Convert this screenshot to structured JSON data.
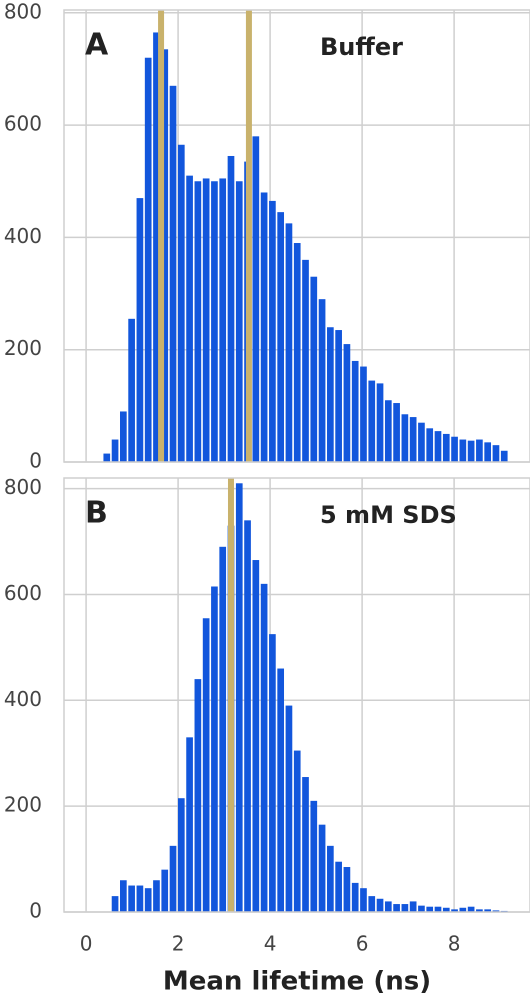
{
  "chart_data": [
    {
      "type": "histogram",
      "panel_label": "A",
      "annotation": "Buffer",
      "bins": [
        0.36,
        0.54,
        0.72,
        0.9,
        1.08,
        1.26,
        1.44,
        1.62,
        1.8,
        1.98,
        2.16,
        2.34,
        2.52,
        2.7,
        2.88,
        3.06,
        3.24,
        3.42,
        3.6,
        3.78,
        3.96,
        4.14,
        4.32,
        4.5,
        4.68,
        4.86,
        5.04,
        5.22,
        5.4,
        5.58,
        5.76,
        5.94,
        6.12,
        6.3,
        6.48,
        6.66,
        6.84,
        7.02,
        7.2,
        7.38,
        7.56,
        7.74,
        7.92,
        8.1,
        8.28,
        8.46,
        8.64,
        8.82,
        9.0,
        9.18
      ],
      "values": [
        15,
        40,
        90,
        255,
        470,
        720,
        765,
        735,
        670,
        565,
        510,
        500,
        505,
        500,
        505,
        545,
        500,
        535,
        580,
        480,
        465,
        445,
        425,
        390,
        360,
        330,
        290,
        240,
        235,
        210,
        180,
        170,
        145,
        140,
        110,
        105,
        85,
        80,
        70,
        60,
        55,
        50,
        45,
        40,
        38,
        40,
        35,
        30,
        20
      ],
      "color": "#1256dc",
      "vlines": [
        1.63,
        3.54
      ],
      "vline_color": "#c9b26c",
      "xlim": [
        -0.48,
        9.65
      ],
      "xticks": [
        0,
        2,
        4,
        6,
        8
      ],
      "ylim": [
        0,
        805
      ],
      "yticks": [
        0,
        200,
        400,
        600,
        800
      ],
      "grid": true
    },
    {
      "type": "histogram",
      "panel_label": "B",
      "annotation": "5 mM SDS",
      "xlabel": "Mean lifetime (ns)",
      "bins": [
        0.36,
        0.54,
        0.72,
        0.9,
        1.08,
        1.26,
        1.44,
        1.62,
        1.8,
        1.98,
        2.16,
        2.34,
        2.52,
        2.7,
        2.88,
        3.06,
        3.24,
        3.42,
        3.6,
        3.78,
        3.96,
        4.14,
        4.32,
        4.5,
        4.68,
        4.86,
        5.04,
        5.22,
        5.4,
        5.58,
        5.76,
        5.94,
        6.12,
        6.3,
        6.48,
        6.66,
        6.84,
        7.02,
        7.2,
        7.38,
        7.56,
        7.74,
        7.92,
        8.1,
        8.28,
        8.46,
        8.64,
        8.82,
        9.0,
        9.18
      ],
      "values": [
        0,
        30,
        60,
        50,
        50,
        45,
        60,
        80,
        125,
        215,
        330,
        440,
        555,
        615,
        690,
        730,
        810,
        740,
        665,
        620,
        525,
        460,
        390,
        305,
        255,
        210,
        165,
        125,
        95,
        85,
        55,
        45,
        30,
        25,
        20,
        15,
        15,
        20,
        12,
        10,
        10,
        8,
        5,
        8,
        10,
        5,
        5,
        3,
        2
      ],
      "color": "#1256dc",
      "vlines": [
        3.15
      ],
      "vline_color": "#c9b26c",
      "xlim": [
        -0.48,
        9.65
      ],
      "xticks": [
        0,
        2,
        4,
        6,
        8
      ],
      "ylim": [
        0,
        820
      ],
      "yticks": [
        0,
        200,
        400,
        600,
        800
      ],
      "grid": true
    }
  ]
}
